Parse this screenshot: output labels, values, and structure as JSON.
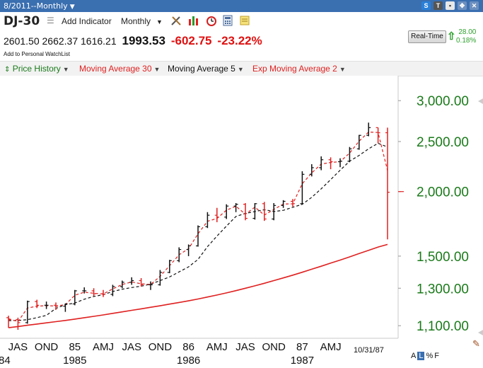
{
  "window": {
    "title": "8/2011--Monthly",
    "icon_names": [
      "s-plus-icon",
      "tv-icon",
      "save-icon",
      "move-icon",
      "close-icon"
    ]
  },
  "toolbar": {
    "symbol": "DJ-30",
    "add_indicator_label": "Add Indicator",
    "period_label": "Monthly",
    "icon_names": [
      "drawing-tools-icon",
      "chart-type-icon",
      "alarm-clock-icon",
      "calculator-icon",
      "notes-icon"
    ]
  },
  "quote": {
    "open": "2601.50",
    "high": "2662.37",
    "low": "1616.21",
    "last": "1993.53",
    "change": "-602.75",
    "change_pct": "-23.22%",
    "watchlist_label": "Add to Personal WatchList"
  },
  "realtime": {
    "button_label": "Real-Time",
    "change": "28.00",
    "change_pct": "0.18%"
  },
  "legend": [
    {
      "label": "Price History",
      "color": "#1a7a1a"
    },
    {
      "label": "Moving Average 30",
      "color": "#e02020"
    },
    {
      "label": "Moving Average 5",
      "color": "#111111"
    },
    {
      "label": "Exp Moving Average 2",
      "color": "#e02020"
    }
  ],
  "chart_data": {
    "type": "line",
    "scale": "log",
    "xlabel": "",
    "ylabel": "",
    "ylim": [
      1040,
      3300
    ],
    "y_ticks": [
      {
        "value": 3000,
        "label": "3,000.00"
      },
      {
        "value": 2500,
        "label": "2,500.00"
      },
      {
        "value": 2000,
        "label": "2,000.00"
      },
      {
        "value": 1500,
        "label": "1,500.00"
      },
      {
        "value": 1300,
        "label": "1,300.00"
      },
      {
        "value": 1100,
        "label": "1,100.00"
      }
    ],
    "x_ticks_top": [
      "JAS",
      "OND",
      "85",
      "AMJ",
      "JAS",
      "OND",
      "86",
      "AMJ",
      "JAS",
      "OND",
      "87",
      "AMJ"
    ],
    "x_ticks_bottom": [
      "84",
      "1985",
      "1986",
      "1987"
    ],
    "date_label": "10/31/87",
    "current_marker": 2000,
    "months": [
      "1984-06",
      "1984-07",
      "1984-08",
      "1984-09",
      "1984-10",
      "1984-11",
      "1984-12",
      "1985-01",
      "1985-02",
      "1985-03",
      "1985-04",
      "1985-05",
      "1985-06",
      "1985-07",
      "1985-08",
      "1985-09",
      "1985-10",
      "1985-11",
      "1985-12",
      "1986-01",
      "1986-02",
      "1986-03",
      "1986-04",
      "1986-05",
      "1986-06",
      "1986-07",
      "1986-08",
      "1986-09",
      "1986-10",
      "1986-11",
      "1986-12",
      "1987-01",
      "1987-02",
      "1987-03",
      "1987-04",
      "1987-05",
      "1987-06",
      "1987-07",
      "1987-08",
      "1987-09",
      "1987-10"
    ],
    "series": [
      {
        "name": "Price History",
        "ohlc": [
          [
            1140,
            1150,
            1090,
            1130
          ],
          [
            1130,
            1140,
            1080,
            1115
          ],
          [
            1115,
            1230,
            1110,
            1225
          ],
          [
            1225,
            1235,
            1190,
            1205
          ],
          [
            1205,
            1225,
            1185,
            1205
          ],
          [
            1205,
            1220,
            1180,
            1200
          ],
          [
            1200,
            1215,
            1170,
            1212
          ],
          [
            1212,
            1290,
            1205,
            1285
          ],
          [
            1285,
            1305,
            1270,
            1285
          ],
          [
            1285,
            1300,
            1255,
            1268
          ],
          [
            1268,
            1290,
            1250,
            1265
          ],
          [
            1265,
            1320,
            1255,
            1310
          ],
          [
            1310,
            1345,
            1300,
            1335
          ],
          [
            1335,
            1365,
            1320,
            1345
          ],
          [
            1345,
            1360,
            1310,
            1320
          ],
          [
            1320,
            1340,
            1290,
            1320
          ],
          [
            1320,
            1410,
            1315,
            1395
          ],
          [
            1395,
            1475,
            1390,
            1470
          ],
          [
            1470,
            1560,
            1460,
            1545
          ],
          [
            1545,
            1580,
            1500,
            1570
          ],
          [
            1570,
            1720,
            1565,
            1710
          ],
          [
            1710,
            1825,
            1700,
            1800
          ],
          [
            1800,
            1860,
            1745,
            1785
          ],
          [
            1785,
            1890,
            1770,
            1875
          ],
          [
            1875,
            1900,
            1825,
            1890
          ],
          [
            1890,
            1900,
            1760,
            1775
          ],
          [
            1775,
            1900,
            1765,
            1895
          ],
          [
            1895,
            1910,
            1755,
            1770
          ],
          [
            1770,
            1900,
            1760,
            1880
          ],
          [
            1880,
            1925,
            1860,
            1915
          ],
          [
            1915,
            1935,
            1870,
            1895
          ],
          [
            1895,
            2190,
            1890,
            2160
          ],
          [
            2160,
            2260,
            2140,
            2225
          ],
          [
            2225,
            2340,
            2200,
            2305
          ],
          [
            2305,
            2330,
            2210,
            2285
          ],
          [
            2285,
            2320,
            2230,
            2290
          ],
          [
            2290,
            2440,
            2280,
            2420
          ],
          [
            2420,
            2575,
            2410,
            2570
          ],
          [
            2570,
            2720,
            2560,
            2660
          ],
          [
            2660,
            2660,
            2480,
            2600
          ],
          [
            2600,
            2660,
            1616,
            1994
          ]
        ]
      },
      {
        "name": "Moving Average 30",
        "values": [
          1090,
          1096,
          1102,
          1108,
          1114,
          1120,
          1126,
          1133,
          1140,
          1147,
          1154,
          1162,
          1170,
          1178,
          1186,
          1194,
          1202,
          1211,
          1220,
          1229,
          1239,
          1250,
          1261,
          1273,
          1286,
          1300,
          1314,
          1329,
          1345,
          1361,
          1378,
          1396,
          1415,
          1434,
          1454,
          1474,
          1495,
          1517,
          1539,
          1562,
          1580
        ]
      },
      {
        "name": "Moving Average 5",
        "values": [
          1125,
          1126,
          1130,
          1140,
          1152,
          1188,
          1208,
          1217,
          1238,
          1253,
          1263,
          1281,
          1294,
          1304,
          1312,
          1324,
          1345,
          1367,
          1398,
          1430,
          1478,
          1565,
          1640,
          1715,
          1790,
          1815,
          1830,
          1845,
          1830,
          1840,
          1865,
          1890,
          1950,
          2025,
          2110,
          2200,
          2290,
          2350,
          2420,
          2480,
          2440
        ]
      },
      {
        "name": "Exp Moving Average 2",
        "values": [
          1135,
          1120,
          1190,
          1200,
          1203,
          1201,
          1208,
          1260,
          1277,
          1271,
          1267,
          1296,
          1322,
          1337,
          1326,
          1322,
          1371,
          1437,
          1509,
          1550,
          1657,
          1752,
          1774,
          1841,
          1874,
          1808,
          1866,
          1802,
          1847,
          1892,
          1894,
          2071,
          2174,
          2261,
          2277,
          2286,
          2375,
          2505,
          2608,
          2603,
          2197
        ]
      }
    ]
  }
}
